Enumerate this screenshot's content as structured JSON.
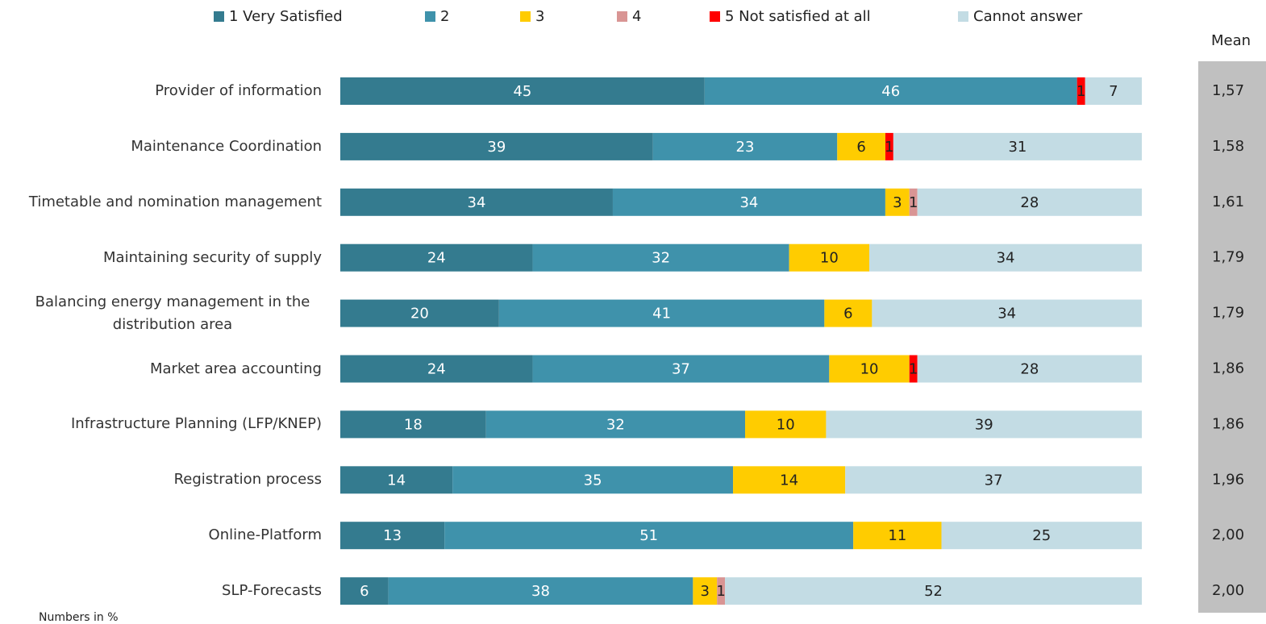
{
  "chart_data": {
    "type": "stacked-bar-horizontal",
    "categories": [
      "Provider of information",
      "Maintenance Coordination",
      "Timetable and nomination management",
      "Maintaining security of supply",
      "Balancing energy management in the distribution area",
      "Market area accounting",
      "Infrastructure Planning (LFP/KNEP)",
      "Registration process",
      "Online-Platform",
      "SLP-Forecasts"
    ],
    "series": [
      {
        "name": "1 Very Satisfied",
        "color": "#347b8f",
        "values": [
          45,
          39,
          34,
          24,
          20,
          24,
          18,
          14,
          13,
          6
        ]
      },
      {
        "name": "2",
        "color": "#3f92ab",
        "values": [
          46,
          23,
          34,
          32,
          41,
          37,
          32,
          35,
          51,
          38
        ]
      },
      {
        "name": "3",
        "color": "#ffcc00",
        "values": [
          null,
          6,
          3,
          10,
          6,
          10,
          10,
          14,
          11,
          3
        ]
      },
      {
        "name": "4",
        "color": "#d99594",
        "values": [
          null,
          null,
          1,
          null,
          null,
          null,
          null,
          null,
          null,
          1
        ]
      },
      {
        "name": "5 Not satisfied at all",
        "color": "#ff0000",
        "values": [
          1,
          1,
          null,
          null,
          null,
          1,
          null,
          null,
          null,
          null
        ]
      },
      {
        "name": "Cannot answer",
        "color": "#c3dce4",
        "values": [
          7,
          31,
          28,
          34,
          34,
          28,
          39,
          37,
          25,
          52
        ]
      }
    ],
    "mean_title": "Mean",
    "means": [
      {
        "value": 1.57,
        "label": "1,57"
      },
      {
        "value": 1.58,
        "label": "1,58"
      },
      {
        "value": 1.61,
        "label": "1,61"
      },
      {
        "value": 1.79,
        "label": "1,79"
      },
      {
        "value": 1.79,
        "label": "1,79"
      },
      {
        "value": 1.86,
        "label": "1,86"
      },
      {
        "value": 1.86,
        "label": "1,86"
      },
      {
        "value": 1.96,
        "label": "1,96"
      },
      {
        "value": 2.0,
        "label": "2,00"
      },
      {
        "value": 2.0,
        "label": "2,00"
      }
    ],
    "note": "Numbers in %"
  }
}
